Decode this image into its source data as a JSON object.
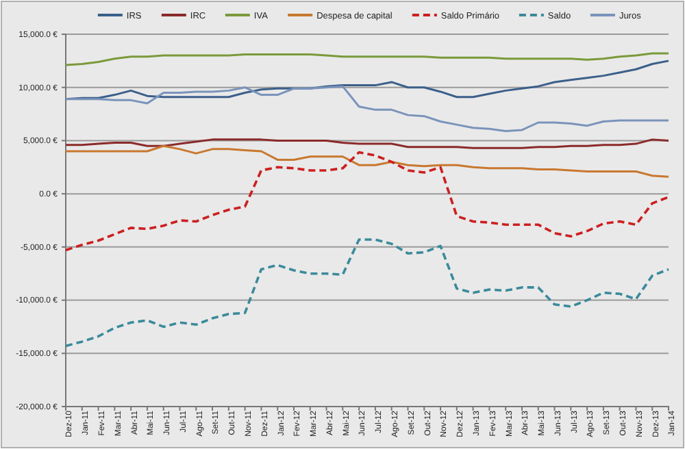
{
  "chart_data": {
    "type": "line",
    "categories": [
      "Dez-10",
      "Jan-11",
      "Fev-11",
      "Mar-11",
      "Abr-11",
      "Mai-11",
      "Jun-11",
      "Jul-11",
      "Ago-11",
      "Set-11",
      "Out-11",
      "Nov-11",
      "Dez-11",
      "Jan-12",
      "Fev-12",
      "Mar-12",
      "Abr-12",
      "Mai-12",
      "Jun-12",
      "Jul-12",
      "Ago-12",
      "Set-12",
      "Out-12",
      "Nov-12",
      "Dez-12",
      "Jan-13",
      "Fev-13",
      "Mar-13",
      "Abr-13",
      "Mai-13",
      "Jun-13",
      "Jul-13",
      "Ago-13",
      "Set-13",
      "Out-13",
      "Nov-13",
      "Dez-13",
      "Jan-14"
    ],
    "ylim": [
      -20000,
      15000
    ],
    "yticks": [
      {
        "value": -20000,
        "label": "-20,000.0 €"
      },
      {
        "value": -15000,
        "label": "-15,000.0 €"
      },
      {
        "value": -10000,
        "label": "-10,000.0 €"
      },
      {
        "value": -5000,
        "label": "-5,000.0 €"
      },
      {
        "value": 0,
        "label": "0.0 €"
      },
      {
        "value": 5000,
        "label": "5,000.0 €"
      },
      {
        "value": 10000,
        "label": "10,000.0 €"
      },
      {
        "value": 15000,
        "label": "15,000.0 €"
      }
    ],
    "grid": "y",
    "legend": "top",
    "marker": "none",
    "series": [
      {
        "name": "IRS",
        "color": "#3b5f8a",
        "line_style": "solid",
        "values": [
          8900,
          9000,
          9000,
          9300,
          9700,
          9200,
          9100,
          9100,
          9100,
          9100,
          9100,
          9500,
          9800,
          9900,
          9900,
          9900,
          10100,
          10200,
          10200,
          10200,
          10500,
          10000,
          10000,
          9600,
          9100,
          9100,
          9400,
          9700,
          9900,
          10100,
          10500,
          10700,
          10900,
          11100,
          11400,
          11700,
          12200,
          12500
        ]
      },
      {
        "name": "IRC",
        "color": "#8b2a2a",
        "line_style": "solid",
        "values": [
          4600,
          4600,
          4700,
          4800,
          4800,
          4500,
          4500,
          4700,
          4900,
          5100,
          5100,
          5100,
          5100,
          5000,
          5000,
          5000,
          5000,
          4800,
          4700,
          4700,
          4700,
          4400,
          4400,
          4400,
          4400,
          4300,
          4300,
          4300,
          4300,
          4400,
          4400,
          4500,
          4500,
          4600,
          4600,
          4700,
          5100,
          5000
        ]
      },
      {
        "name": "IVA",
        "color": "#7a9a3a",
        "line_style": "solid",
        "values": [
          12100,
          12200,
          12400,
          12700,
          12900,
          12900,
          13000,
          13000,
          13000,
          13000,
          13000,
          13100,
          13100,
          13100,
          13100,
          13100,
          13000,
          12900,
          12900,
          12900,
          12900,
          12900,
          12900,
          12800,
          12800,
          12800,
          12800,
          12700,
          12700,
          12700,
          12700,
          12700,
          12600,
          12700,
          12900,
          13000,
          13200,
          13200
        ]
      },
      {
        "name": "Despesa de capital",
        "color": "#c8782f",
        "line_style": "solid",
        "values": [
          4000,
          4000,
          4000,
          4000,
          4000,
          4000,
          4500,
          4200,
          3800,
          4200,
          4200,
          4100,
          4000,
          3200,
          3200,
          3500,
          3500,
          3500,
          2700,
          2700,
          3000,
          2700,
          2600,
          2700,
          2700,
          2500,
          2400,
          2400,
          2400,
          2300,
          2300,
          2200,
          2100,
          2100,
          2100,
          2100,
          1700,
          1600
        ]
      },
      {
        "name": "Saldo Primário",
        "color": "#cc1f1f",
        "line_style": "dashed",
        "values": [
          -5300,
          -4800,
          -4400,
          -3800,
          -3200,
          -3300,
          -3000,
          -2500,
          -2600,
          -2000,
          -1500,
          -1200,
          2200,
          2500,
          2400,
          2200,
          2200,
          2400,
          3900,
          3600,
          3000,
          2200,
          2000,
          2500,
          -2100,
          -2600,
          -2700,
          -2900,
          -2900,
          -2900,
          -3700,
          -4000,
          -3500,
          -2800,
          -2600,
          -2900,
          -900,
          -300
        ]
      },
      {
        "name": "Saldo",
        "color": "#3a8a9a",
        "line_style": "dashed",
        "values": [
          -14300,
          -13900,
          -13400,
          -12600,
          -12100,
          -11900,
          -12500,
          -12100,
          -12300,
          -11700,
          -11300,
          -11200,
          -7100,
          -6700,
          -7200,
          -7500,
          -7500,
          -7600,
          -4300,
          -4300,
          -4700,
          -5600,
          -5500,
          -4900,
          -8900,
          -9300,
          -9000,
          -9100,
          -8800,
          -8800,
          -10400,
          -10600,
          -10000,
          -9300,
          -9400,
          -9900,
          -7700,
          -7100
        ]
      },
      {
        "name": "Juros",
        "color": "#7a93bb",
        "line_style": "solid",
        "values": [
          8900,
          8900,
          8900,
          8800,
          8800,
          8500,
          9500,
          9500,
          9600,
          9600,
          9700,
          10000,
          9300,
          9300,
          9900,
          9900,
          10000,
          10100,
          8200,
          7900,
          7900,
          7400,
          7300,
          6800,
          6500,
          6200,
          6100,
          5900,
          6000,
          6700,
          6700,
          6600,
          6400,
          6800,
          6900,
          6900,
          6900,
          6900
        ]
      }
    ]
  }
}
